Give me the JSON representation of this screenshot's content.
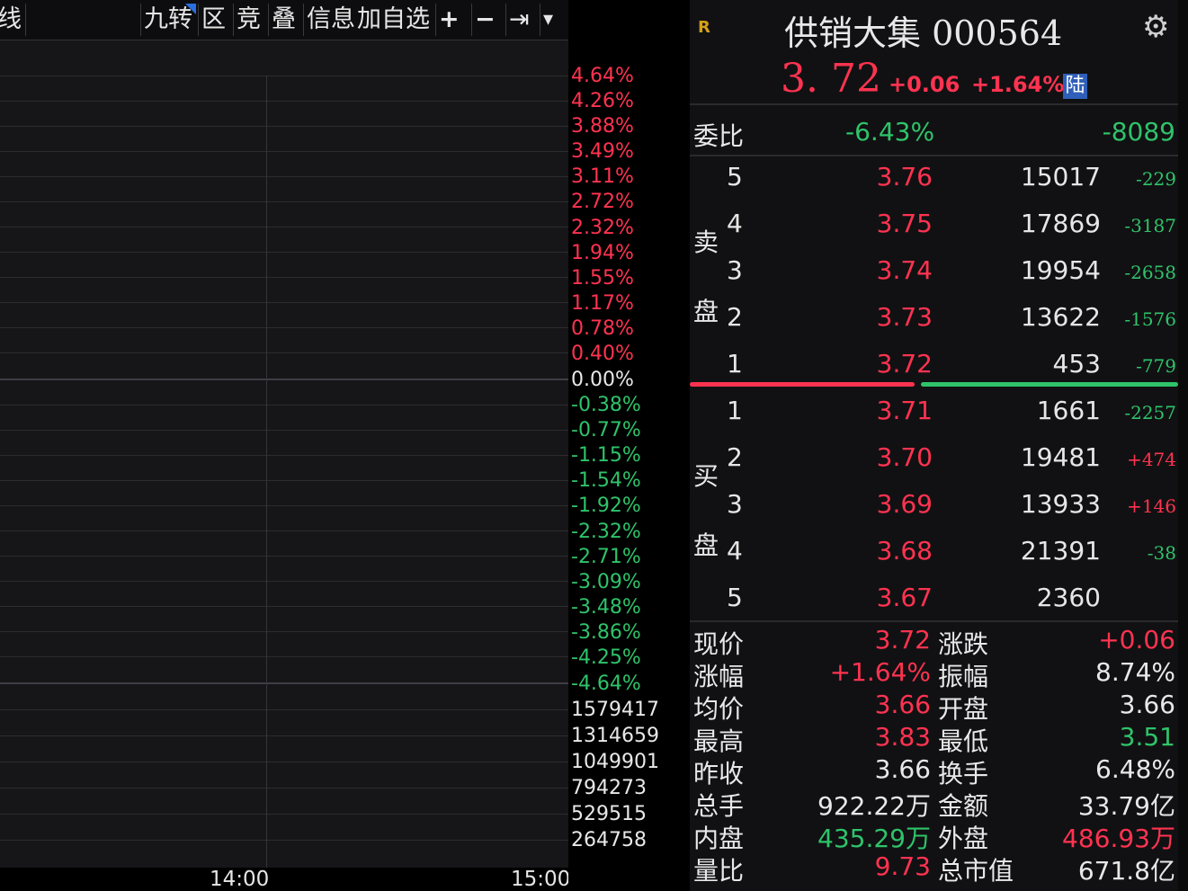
{
  "toolbar": {
    "left_cut": "线",
    "items": [
      "九转",
      "区",
      "竞",
      "叠",
      "信息",
      "加自选",
      "+",
      "−",
      "⇥",
      "▾"
    ]
  },
  "yaxis": {
    "pct_labels": [
      "4.64%",
      "4.26%",
      "3.88%",
      "3.49%",
      "3.11%",
      "2.72%",
      "2.32%",
      "1.94%",
      "1.55%",
      "1.17%",
      "0.78%",
      "0.40%",
      "0.00%",
      "-0.38%",
      "-0.77%",
      "-1.15%",
      "-1.54%",
      "-1.92%",
      "-2.32%",
      "-2.71%",
      "-3.09%",
      "-3.48%",
      "-3.86%",
      "-4.25%",
      "-4.64%"
    ],
    "vol_labels": [
      "1579417",
      "1314659",
      "1049901",
      "794273",
      "529515",
      "264758"
    ]
  },
  "time_labels": [
    "14:00",
    "15:00"
  ],
  "quote": {
    "badge": "R",
    "name_code": "供销大集 000564",
    "price": "3. 72",
    "change": "+0.06",
    "change_pct": "+1.64%",
    "tag": "陆",
    "webi_label": "委比",
    "webi_pct": "-6.43%",
    "webi_val": "-8089",
    "sell_label_1": "卖",
    "sell_label_2": "盘",
    "buy_label_1": "买",
    "buy_label_2": "盘"
  },
  "orderbook": {
    "asks": [
      {
        "level": "5",
        "price": "3.76",
        "vol": "15017",
        "chg": "-229"
      },
      {
        "level": "4",
        "price": "3.75",
        "vol": "17869",
        "chg": "-3187"
      },
      {
        "level": "3",
        "price": "3.74",
        "vol": "19954",
        "chg": "-2658"
      },
      {
        "level": "2",
        "price": "3.73",
        "vol": "13622",
        "chg": "-1576"
      },
      {
        "level": "1",
        "price": "3.72",
        "vol": "453",
        "chg": "-779"
      }
    ],
    "bids": [
      {
        "level": "1",
        "price": "3.71",
        "vol": "1661",
        "chg": "-2257"
      },
      {
        "level": "2",
        "price": "3.70",
        "vol": "19481",
        "chg": "+474"
      },
      {
        "level": "3",
        "price": "3.69",
        "vol": "13933",
        "chg": "+146"
      },
      {
        "level": "4",
        "price": "3.68",
        "vol": "21391",
        "chg": "-38"
      },
      {
        "level": "5",
        "price": "3.67",
        "vol": "2360",
        "chg": ""
      }
    ]
  },
  "stats": [
    {
      "k1": "现价",
      "v1": "3.72",
      "c1": "red",
      "k2": "涨跌",
      "v2": "+0.06",
      "c2": "red"
    },
    {
      "k1": "涨幅",
      "v1": "+1.64%",
      "c1": "red",
      "k2": "振幅",
      "v2": "8.74%",
      "c2": "white"
    },
    {
      "k1": "均价",
      "v1": "3.66",
      "c1": "red",
      "k2": "开盘",
      "v2": "3.66",
      "c2": "white"
    },
    {
      "k1": "最高",
      "v1": "3.83",
      "c1": "red",
      "k2": "最低",
      "v2": "3.51",
      "c2": "green"
    },
    {
      "k1": "昨收",
      "v1": "3.66",
      "c1": "white",
      "k2": "换手",
      "v2": "6.48%",
      "c2": "white"
    },
    {
      "k1": "总手",
      "v1": "922.22万",
      "c1": "white",
      "k2": "金额",
      "v2": "33.79亿",
      "c2": "white"
    },
    {
      "k1": "内盘",
      "v1": "435.29万",
      "c1": "green",
      "k2": "外盘",
      "v2": "486.93万",
      "c2": "red"
    },
    {
      "k1": "量比",
      "v1": "9.73",
      "c1": "red",
      "k2": "总市值",
      "v2": "671.8亿",
      "c2": "white"
    }
  ],
  "colors": {
    "up": "#ff3350",
    "down": "#2fc36a",
    "neutral": "#e8e8e8"
  }
}
